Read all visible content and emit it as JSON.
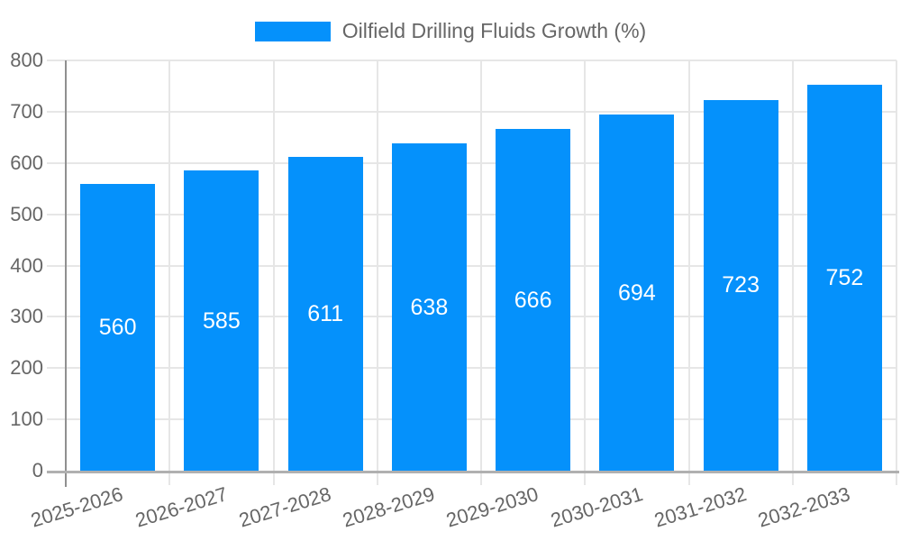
{
  "legend": {
    "label": "Oilfield Drilling Fluids Growth (%)",
    "swatch_color": "#0591fb"
  },
  "chart_data": {
    "type": "bar",
    "title": "Oilfield Drilling Fluids Growth (%)",
    "categories": [
      "2025-2026",
      "2026-2027",
      "2027-2028",
      "2028-2029",
      "2029-2030",
      "2030-2031",
      "2031-2032",
      "2032-2033"
    ],
    "values": [
      560,
      585,
      611,
      638,
      666,
      694,
      723,
      752
    ],
    "value_labels": [
      "560",
      "585",
      "611",
      "638",
      "666",
      "694",
      "723",
      "752"
    ],
    "xlabel": "",
    "ylabel": "",
    "ylim": [
      0,
      800
    ],
    "yticks": [
      0,
      100,
      200,
      300,
      400,
      500,
      600,
      700,
      800
    ],
    "grid": true,
    "x_tick_rotation_deg": -17,
    "legend_position": "top-center",
    "colors": {
      "bar": "#0591fb",
      "value_label": "#ffffff",
      "grid": "#e6e6e6",
      "x_axis": "#b0b0b0",
      "y_axis": "#909090",
      "tick_label": "#666666",
      "background": "#ffffff"
    }
  }
}
